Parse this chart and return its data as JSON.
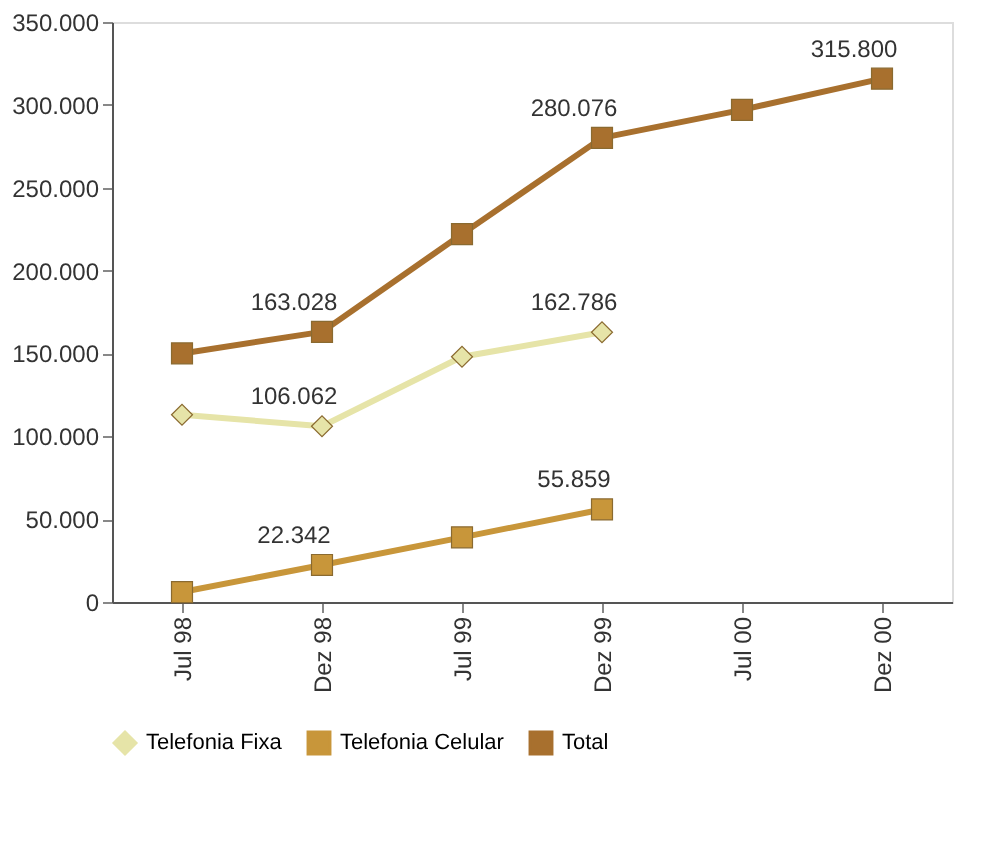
{
  "chart_data": {
    "type": "line",
    "categories": [
      "Jul 98",
      "Dez 98",
      "Jul 99",
      "Dez 99",
      "Jul 00",
      "Dez 00"
    ],
    "ylim": [
      0,
      350000
    ],
    "yticks": [
      {
        "value": 0,
        "label": "0"
      },
      {
        "value": 50000,
        "label": "50.000"
      },
      {
        "value": 100000,
        "label": "100.000"
      },
      {
        "value": 150000,
        "label": "150.000"
      },
      {
        "value": 200000,
        "label": "200.000"
      },
      {
        "value": 250000,
        "label": "250.000"
      },
      {
        "value": 300000,
        "label": "300.000"
      },
      {
        "value": 350000,
        "label": "350.000"
      }
    ],
    "grid": false,
    "legend": "bottom",
    "line_style": "solid",
    "series": [
      {
        "name": "Telefonia Fixa",
        "color": "#e6e4a8",
        "marker": "diamond",
        "values": [
          113000,
          106062,
          148000,
          162786,
          null,
          null
        ],
        "value_labels": [
          null,
          "106.062",
          null,
          "162.786",
          null,
          null
        ]
      },
      {
        "name": "Telefonia Celular",
        "color": "#c8963a",
        "marker": "square",
        "values": [
          6000,
          22342,
          39000,
          55859,
          null,
          null
        ],
        "value_labels": [
          null,
          "22.342",
          null,
          "55.859",
          null,
          null
        ]
      },
      {
        "name": "Total",
        "color": "#a8702e",
        "marker": "square",
        "values": [
          150000,
          163028,
          222000,
          280076,
          297000,
          315800
        ],
        "value_labels": [
          null,
          "163.028",
          null,
          "280.076",
          null,
          "315.800"
        ]
      }
    ]
  }
}
